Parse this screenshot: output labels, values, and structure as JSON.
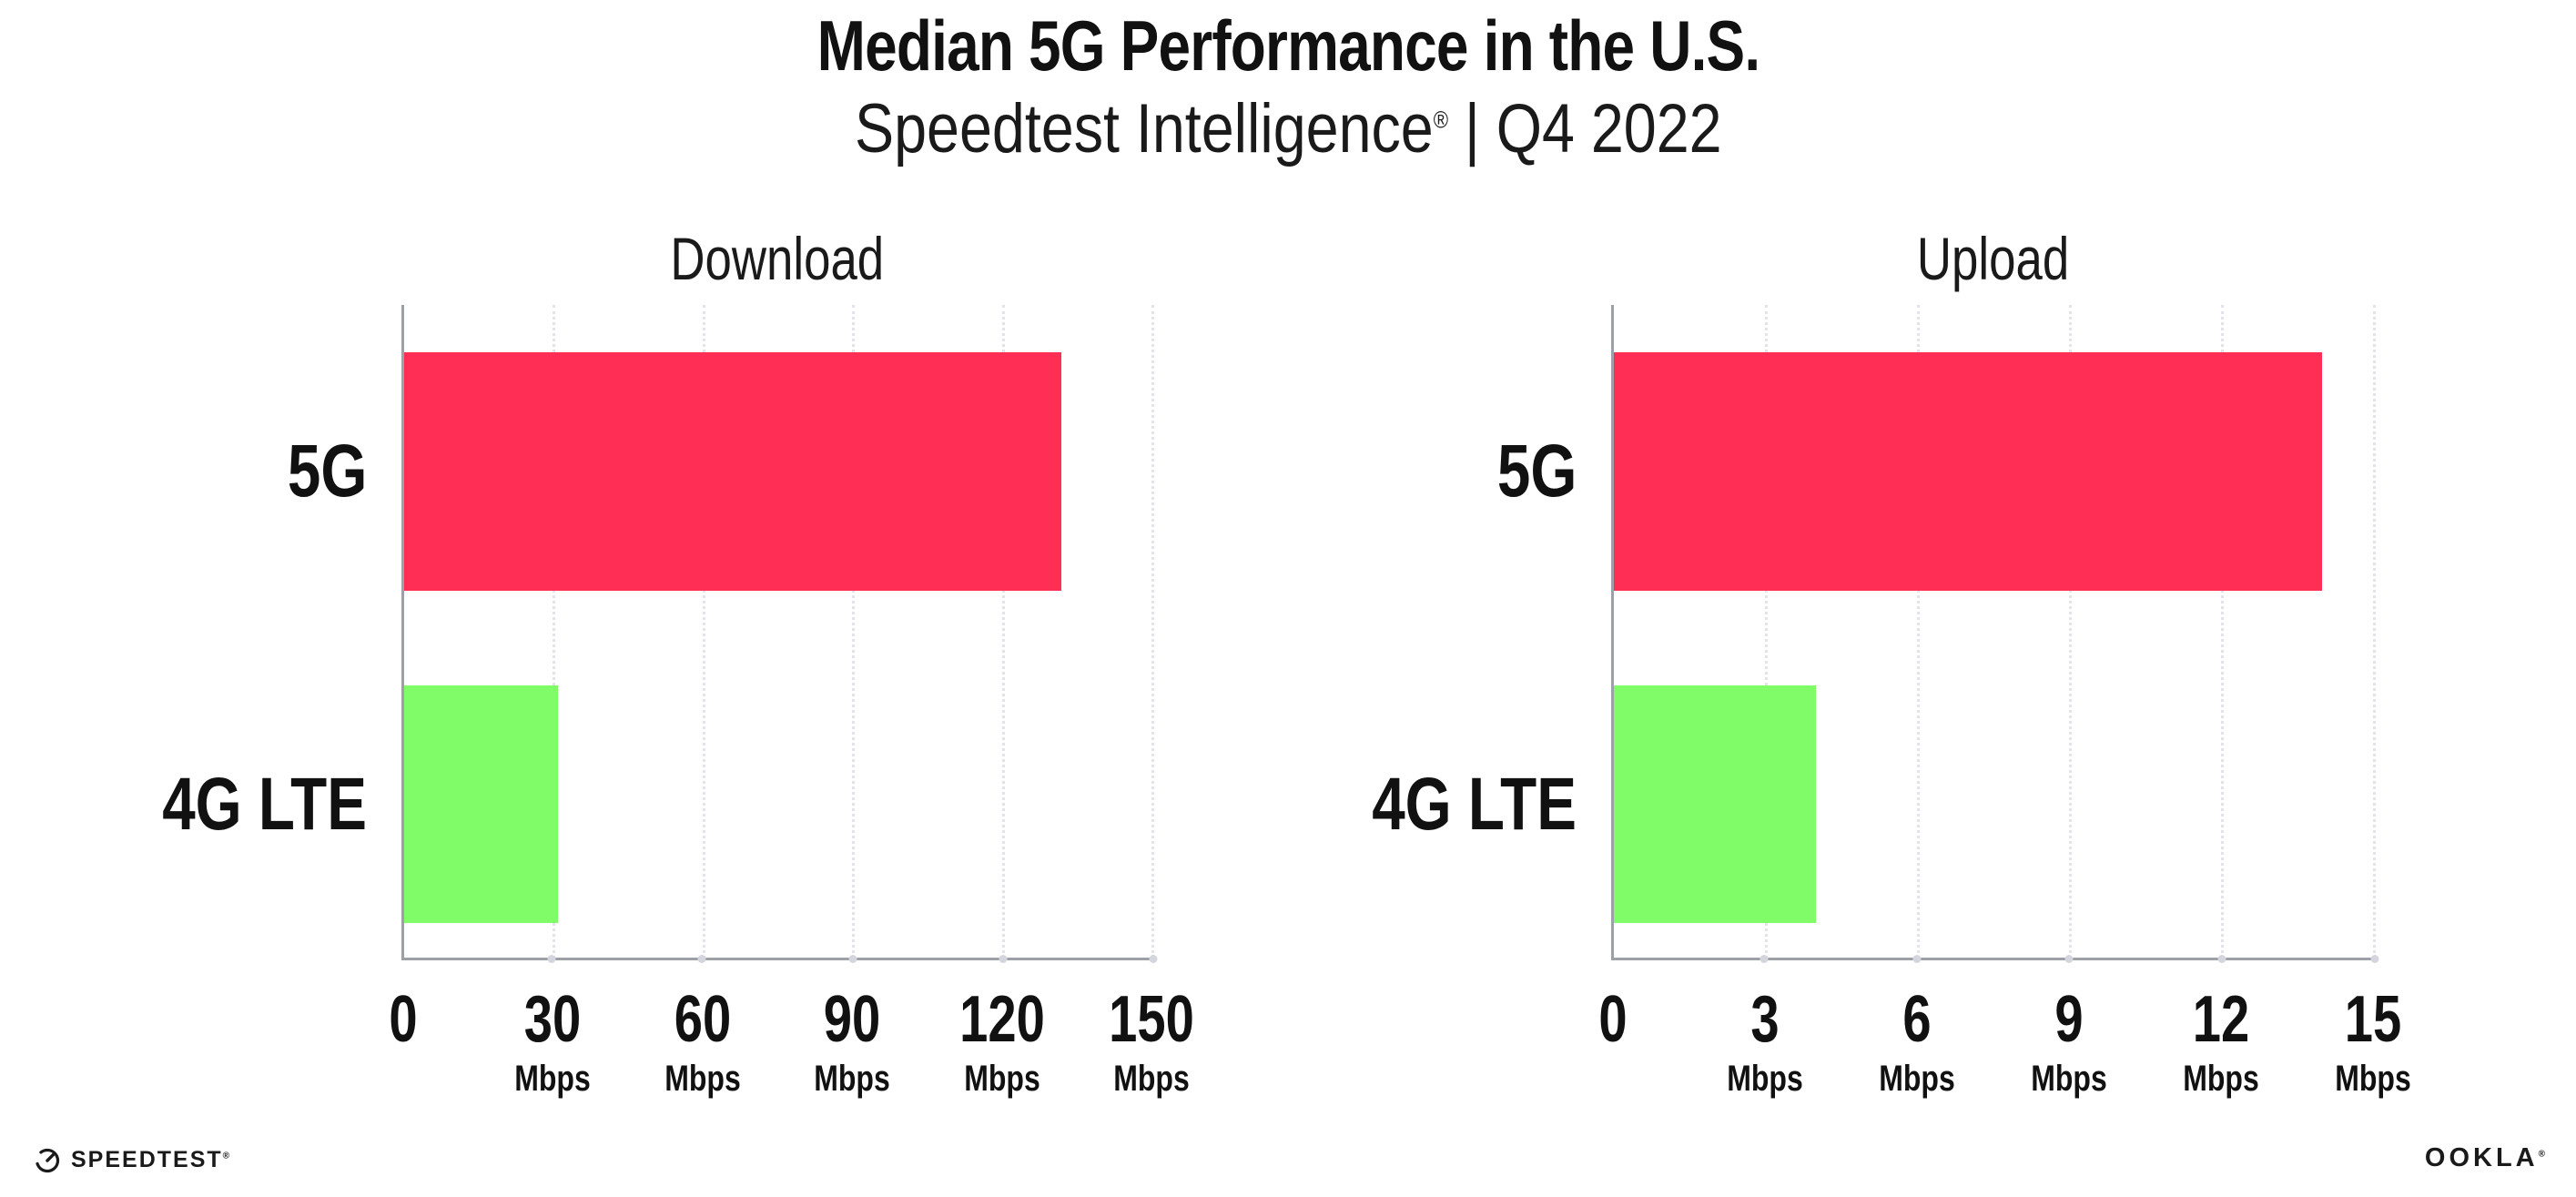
{
  "header": {
    "title": "Median 5G Performance in the U.S.",
    "subtitle_brand": "Speedtest Intelligence",
    "subtitle_regmark": "®",
    "subtitle_rest": " | Q4 2022"
  },
  "colors": {
    "bar_5g": "#ff2e55",
    "bar_4g_lte": "#80fc69",
    "axis_line": "#9ea0a8",
    "gridline": "#e3e3ed",
    "text": "#111111",
    "background": "#ffffff"
  },
  "chart_data": [
    {
      "type": "bar",
      "orientation": "horizontal",
      "title": "Download",
      "categories": [
        "5G",
        "4G LTE"
      ],
      "values": [
        132,
        31
      ],
      "colors": [
        "#ff2e55",
        "#80fc69"
      ],
      "unit": "Mbps",
      "xlim": [
        0,
        150
      ],
      "xticks": [
        0,
        30,
        60,
        90,
        120,
        150
      ],
      "tick_unit": "Mbps",
      "grid": "dotted vertical gridlines",
      "legend": "none"
    },
    {
      "type": "bar",
      "orientation": "horizontal",
      "title": "Upload",
      "categories": [
        "5G",
        "4G LTE"
      ],
      "values": [
        14,
        4
      ],
      "colors": [
        "#ff2e55",
        "#80fc69"
      ],
      "unit": "Mbps",
      "xlim": [
        0,
        15
      ],
      "xticks": [
        0,
        3,
        6,
        9,
        12,
        15
      ],
      "tick_unit": "Mbps",
      "grid": "dotted vertical gridlines",
      "legend": "none"
    }
  ],
  "footer": {
    "speedtest_label": "SPEEDTEST",
    "speedtest_mark": "®",
    "ookla_label": "OOKLA",
    "ookla_mark": "®",
    "gauge_icon": "speedtest-gauge-icon"
  }
}
